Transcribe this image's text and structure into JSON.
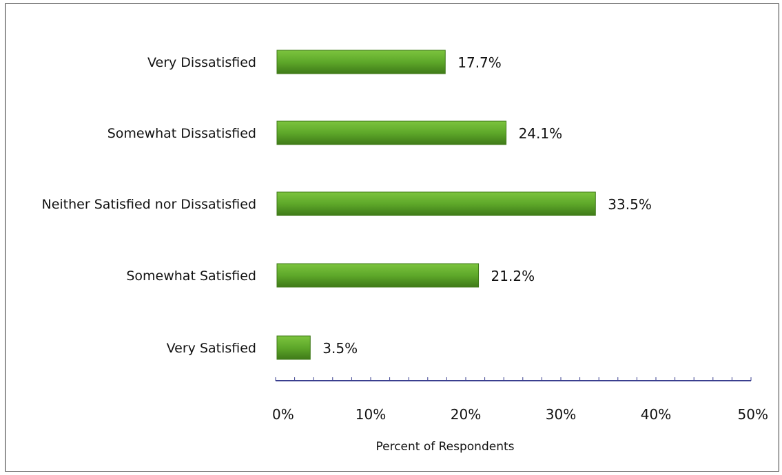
{
  "chart_data": {
    "type": "bar",
    "orientation": "horizontal",
    "categories": [
      "Very Dissatisfied",
      "Somewhat Dissatisfied",
      "Neither Satisfied nor Dissatisfied",
      "Somewhat Satisfied",
      "Very Satisfied"
    ],
    "values": [
      17.7,
      24.1,
      33.5,
      21.2,
      3.5
    ],
    "value_labels": [
      "17.7%",
      "24.1%",
      "33.5%",
      "21.2%",
      "3.5%"
    ],
    "xlabel": "Percent of Respondents",
    "ylabel": "",
    "xlim": [
      0,
      50
    ],
    "xticks": [
      0,
      10,
      20,
      30,
      40,
      50
    ],
    "xtick_labels": [
      "0%",
      "10%",
      "20%",
      "30%",
      "40%",
      "50%"
    ],
    "grid": false,
    "legend": "none",
    "colors": {
      "bar": "#5ea82a",
      "bar_light": "#7cc43e",
      "bar_dark": "#3f7a18",
      "axis": "#3a3f8f"
    }
  }
}
